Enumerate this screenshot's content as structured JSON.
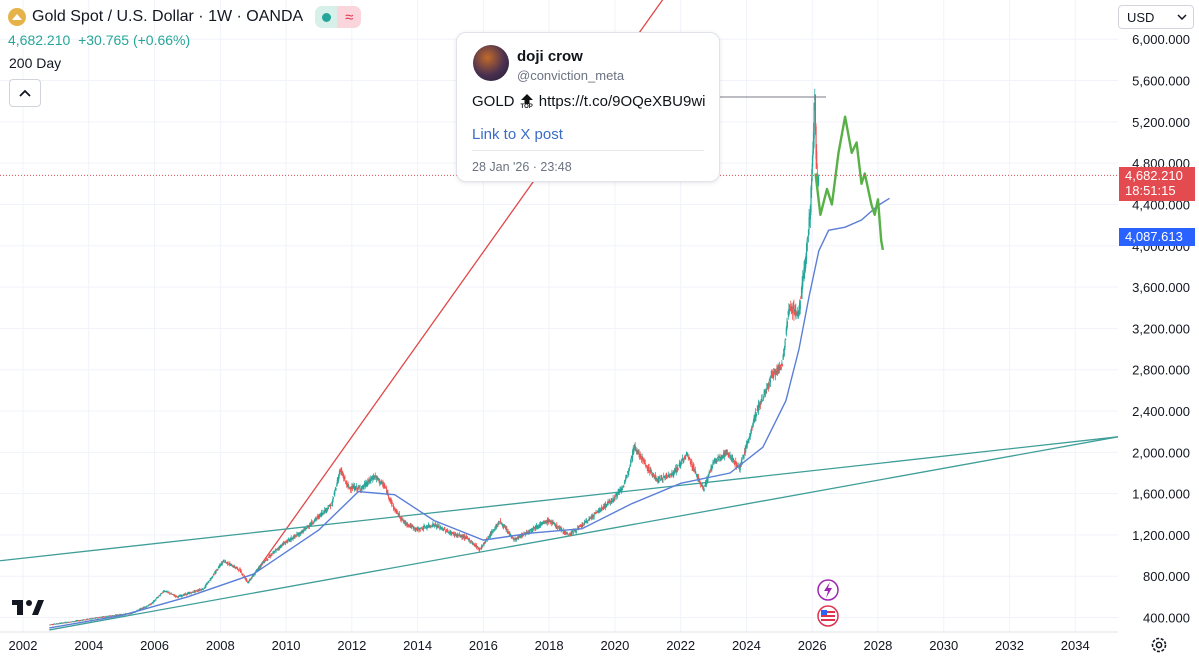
{
  "header": {
    "title": "Gold Spot / U.S. Dollar · 1W · OANDA",
    "last_price": "4,682.210",
    "change": "+30.765 (+0.66%)",
    "indicator_label": "200 Day"
  },
  "currency_selector": {
    "value": "USD"
  },
  "price_tags": {
    "last_price": "4,682.210",
    "countdown": "18:51:15",
    "ma_value": "4,087.613"
  },
  "tweet": {
    "name": "doji crow",
    "handle": "@conviction_meta",
    "text_ticker": "GOLD",
    "emoji_label": "TOP",
    "url": "https://t.co/9OQeXBU9wi",
    "link_label": "Link to X post",
    "timestamp": "28 Jan '26 · 23:48"
  },
  "colors": {
    "up": "#26a69a",
    "down": "#ef5350",
    "ma": "#5b7fd6",
    "trend_red": "#e04848",
    "trend_teal": "#3f9e99",
    "projection": "#58b146",
    "ma_tag": "#2962ff",
    "price_tag": "#e34b50"
  },
  "chart_data": {
    "type": "candlestick",
    "symbol": "Gold Spot / U.S. Dollar",
    "interval": "1W",
    "x_ticks": [
      "2002",
      "2004",
      "2006",
      "2008",
      "2010",
      "2012",
      "2014",
      "2016",
      "2018",
      "2020",
      "2022",
      "2024",
      "2026",
      "2028",
      "2030",
      "2032",
      "2034"
    ],
    "y_ticks": [
      "6,000.000",
      "5,600.000",
      "5,200.000",
      "4,800.000",
      "4,400.000",
      "4,000.000",
      "3,600.000",
      "3,200.000",
      "2,800.000",
      "2,400.000",
      "2,000.000",
      "1,600.000",
      "1,200.000",
      "800.000",
      "400.000"
    ],
    "ylim": [
      260,
      6380
    ],
    "xlim": [
      2001.3,
      2035.3
    ],
    "grid": true,
    "price_path": [
      [
        2002.8,
        330
      ],
      [
        2003.5,
        360
      ],
      [
        2004.5,
        410
      ],
      [
        2005.3,
        440
      ],
      [
        2005.9,
        530
      ],
      [
        2006.3,
        660
      ],
      [
        2006.7,
        600
      ],
      [
        2007.5,
        680
      ],
      [
        2008.1,
        950
      ],
      [
        2008.6,
        860
      ],
      [
        2008.85,
        740
      ],
      [
        2009.3,
        930
      ],
      [
        2009.9,
        1110
      ],
      [
        2010.5,
        1230
      ],
      [
        2011.0,
        1380
      ],
      [
        2011.4,
        1500
      ],
      [
        2011.65,
        1830
      ],
      [
        2011.9,
        1660
      ],
      [
        2012.3,
        1650
      ],
      [
        2012.7,
        1770
      ],
      [
        2013.0,
        1670
      ],
      [
        2013.3,
        1450
      ],
      [
        2013.6,
        1320
      ],
      [
        2014.0,
        1250
      ],
      [
        2014.5,
        1300
      ],
      [
        2015.0,
        1220
      ],
      [
        2015.5,
        1170
      ],
      [
        2015.9,
        1060
      ],
      [
        2016.5,
        1330
      ],
      [
        2016.95,
        1150
      ],
      [
        2017.5,
        1260
      ],
      [
        2018.0,
        1340
      ],
      [
        2018.6,
        1200
      ],
      [
        2019.0,
        1290
      ],
      [
        2019.5,
        1430
      ],
      [
        2020.0,
        1560
      ],
      [
        2020.3,
        1690
      ],
      [
        2020.6,
        2060
      ],
      [
        2021.0,
        1850
      ],
      [
        2021.3,
        1730
      ],
      [
        2021.8,
        1800
      ],
      [
        2022.2,
        1980
      ],
      [
        2022.7,
        1640
      ],
      [
        2023.0,
        1900
      ],
      [
        2023.4,
        2000
      ],
      [
        2023.8,
        1850
      ],
      [
        2024.0,
        2050
      ],
      [
        2024.3,
        2380
      ],
      [
        2024.8,
        2750
      ],
      [
        2025.1,
        2850
      ],
      [
        2025.3,
        3400
      ],
      [
        2025.6,
        3350
      ],
      [
        2025.8,
        3850
      ],
      [
        2025.95,
        4350
      ],
      [
        2026.05,
        5100
      ],
      [
        2026.08,
        5580
      ],
      [
        2026.12,
        4950
      ],
      [
        2026.16,
        4600
      ],
      [
        2026.2,
        4682
      ]
    ],
    "ma_200": [
      [
        2002.8,
        300
      ],
      [
        2005.0,
        420
      ],
      [
        2007.0,
        600
      ],
      [
        2009.0,
        820
      ],
      [
        2011.0,
        1250
      ],
      [
        2012.2,
        1620
      ],
      [
        2013.3,
        1590
      ],
      [
        2014.5,
        1340
      ],
      [
        2016.0,
        1150
      ],
      [
        2017.5,
        1220
      ],
      [
        2019.0,
        1260
      ],
      [
        2020.5,
        1500
      ],
      [
        2022.0,
        1700
      ],
      [
        2023.5,
        1800
      ],
      [
        2024.5,
        2050
      ],
      [
        2025.2,
        2500
      ],
      [
        2025.6,
        3000
      ],
      [
        2025.9,
        3500
      ],
      [
        2026.2,
        3950
      ],
      [
        2026.5,
        4150
      ],
      [
        2027.0,
        4180
      ],
      [
        2027.5,
        4250
      ],
      [
        2028.0,
        4390
      ],
      [
        2028.35,
        4460
      ]
    ],
    "projection": [
      [
        2026.1,
        4700
      ],
      [
        2026.25,
        4300
      ],
      [
        2026.45,
        4550
      ],
      [
        2026.6,
        4400
      ],
      [
        2026.8,
        4900
      ],
      [
        2027.0,
        5250
      ],
      [
        2027.2,
        4900
      ],
      [
        2027.35,
        5000
      ],
      [
        2027.5,
        4600
      ],
      [
        2027.6,
        4700
      ],
      [
        2027.8,
        4400
      ],
      [
        2027.9,
        4300
      ],
      [
        2028.0,
        4450
      ],
      [
        2028.1,
        4050
      ],
      [
        2028.15,
        3960
      ]
    ],
    "trendlines": [
      {
        "role": "resistance",
        "color": "#e04848",
        "from": [
          2008.85,
          740
        ],
        "to": [
          2034.0,
          12000
        ]
      },
      {
        "role": "support_upper",
        "color": "#3f9e99",
        "from": [
          2001.3,
          950
        ],
        "to": [
          2035.3,
          2150
        ]
      },
      {
        "role": "support_lower",
        "color": "#3f9e99",
        "from": [
          2002.8,
          280
        ],
        "to": [
          2035.3,
          2150
        ]
      }
    ],
    "last_price": 4682.21,
    "ma_last": 4087.613
  }
}
